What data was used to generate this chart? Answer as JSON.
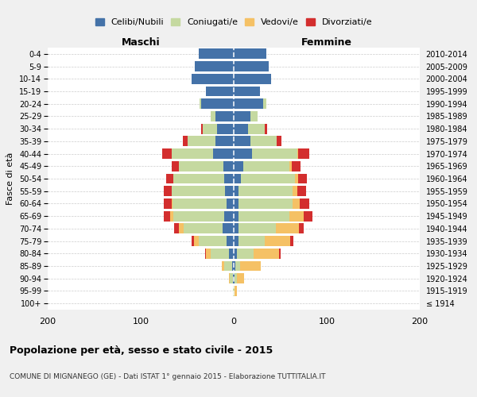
{
  "age_groups": [
    "100+",
    "95-99",
    "90-94",
    "85-89",
    "80-84",
    "75-79",
    "70-74",
    "65-69",
    "60-64",
    "55-59",
    "50-54",
    "45-49",
    "40-44",
    "35-39",
    "30-34",
    "25-29",
    "20-24",
    "15-19",
    "10-14",
    "5-9",
    "0-4"
  ],
  "birth_years": [
    "≤ 1914",
    "1915-1919",
    "1920-1924",
    "1925-1929",
    "1930-1934",
    "1935-1939",
    "1940-1944",
    "1945-1949",
    "1950-1954",
    "1955-1959",
    "1960-1964",
    "1965-1969",
    "1970-1974",
    "1975-1979",
    "1980-1984",
    "1985-1989",
    "1990-1994",
    "1995-1999",
    "2000-2004",
    "2005-2009",
    "2010-2014"
  ],
  "maschi": {
    "celibi": [
      0,
      0,
      1,
      2,
      5,
      8,
      12,
      10,
      8,
      9,
      10,
      11,
      22,
      20,
      18,
      20,
      35,
      30,
      45,
      42,
      38
    ],
    "coniugati": [
      0,
      1,
      3,
      8,
      20,
      30,
      42,
      55,
      58,
      58,
      55,
      48,
      45,
      30,
      15,
      5,
      2,
      0,
      0,
      0,
      0
    ],
    "vedovi": [
      0,
      0,
      1,
      3,
      5,
      5,
      5,
      3,
      1,
      0,
      0,
      0,
      0,
      0,
      0,
      0,
      0,
      0,
      0,
      0,
      0
    ],
    "divorziati": [
      0,
      0,
      0,
      0,
      1,
      2,
      5,
      7,
      8,
      8,
      8,
      8,
      10,
      5,
      2,
      0,
      0,
      0,
      0,
      0,
      0
    ]
  },
  "femmine": {
    "nubili": [
      0,
      0,
      1,
      2,
      3,
      5,
      5,
      5,
      5,
      5,
      8,
      10,
      20,
      18,
      15,
      18,
      32,
      28,
      40,
      38,
      35
    ],
    "coniugate": [
      0,
      1,
      2,
      5,
      18,
      28,
      40,
      55,
      58,
      58,
      58,
      50,
      48,
      28,
      18,
      8,
      3,
      0,
      0,
      0,
      0
    ],
    "vedove": [
      0,
      2,
      8,
      22,
      28,
      28,
      25,
      15,
      8,
      5,
      3,
      2,
      1,
      0,
      0,
      0,
      0,
      0,
      0,
      0,
      0
    ],
    "divorziate": [
      0,
      0,
      0,
      0,
      1,
      3,
      5,
      10,
      10,
      10,
      10,
      10,
      12,
      5,
      3,
      0,
      0,
      0,
      0,
      0,
      0
    ]
  },
  "colors": {
    "celibi": "#4472a8",
    "coniugati": "#c5d9a0",
    "vedovi": "#f5c165",
    "divorziati": "#d32e2e"
  },
  "xlim": 200,
  "title": "Popolazione per età, sesso e stato civile - 2015",
  "subtitle": "COMUNE DI MIGNANEGO (GE) - Dati ISTAT 1° gennaio 2015 - Elaborazione TUTTITALIA.IT",
  "ylabel_left": "Fasce di età",
  "xlabel_maschi": "Maschi",
  "xlabel_femmine": "Femmine",
  "bg_color": "#f0f0f0",
  "plot_bg": "#ffffff"
}
